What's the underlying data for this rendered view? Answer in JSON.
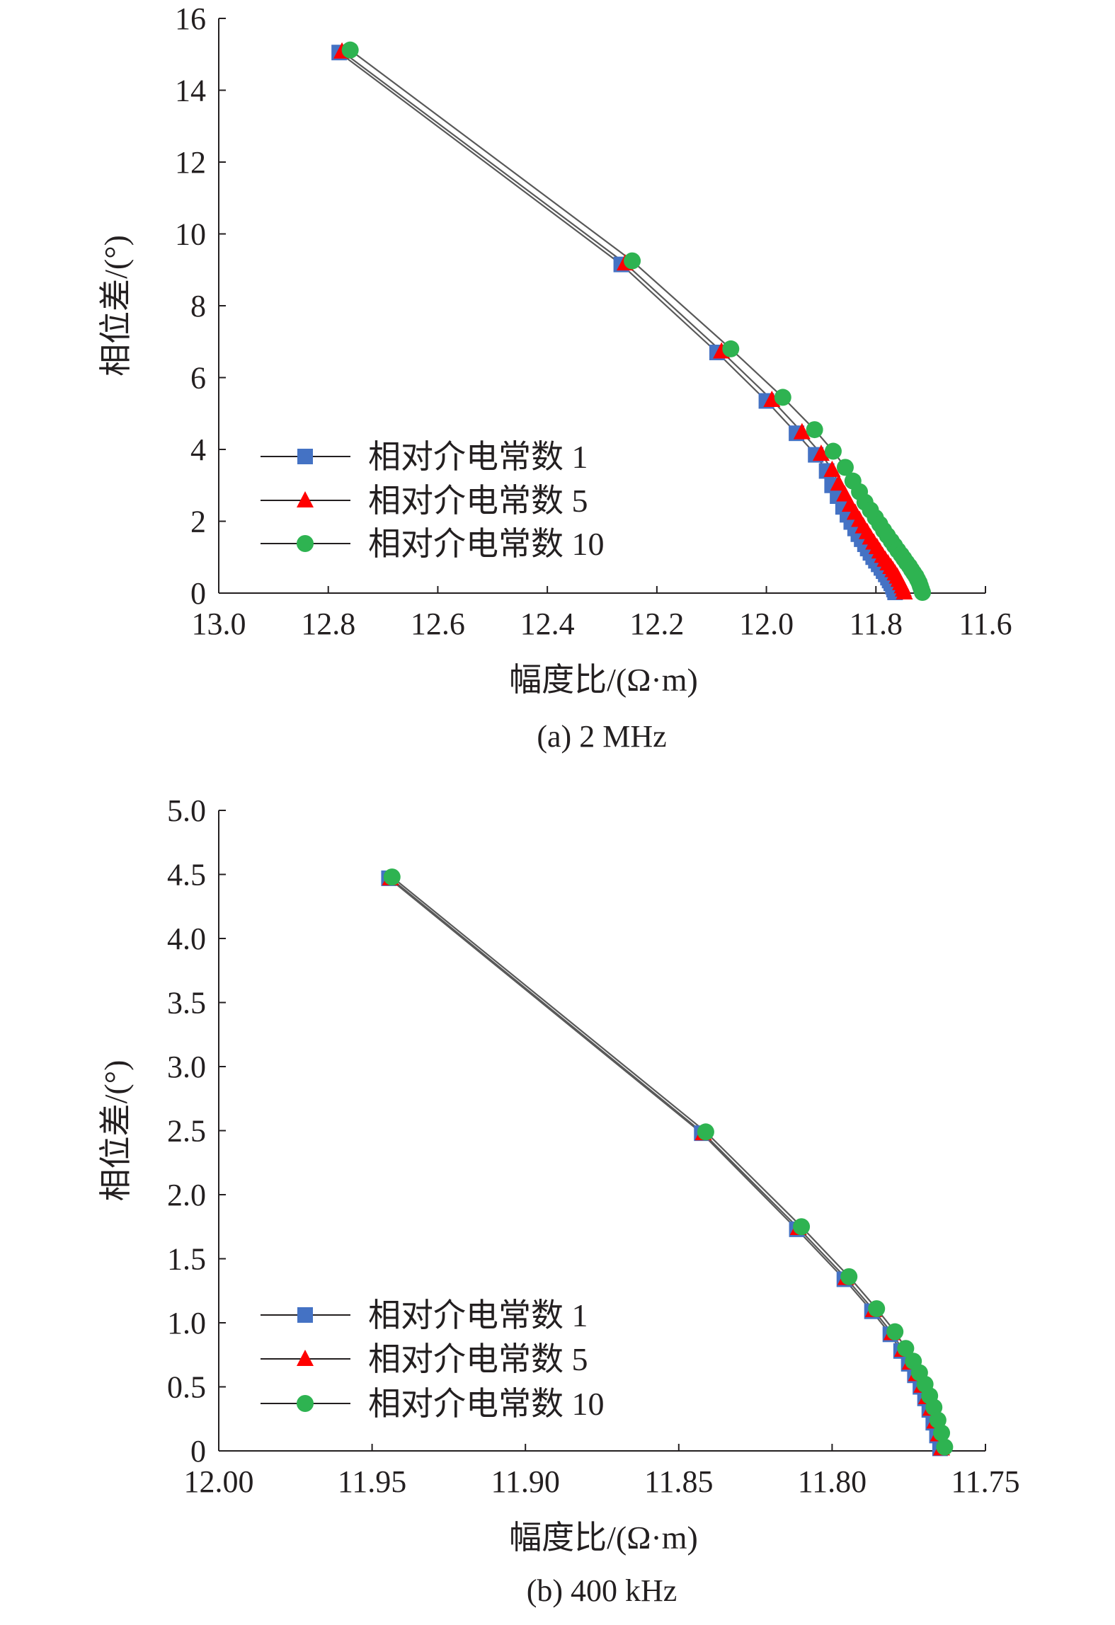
{
  "colors": {
    "series_1": "#4472c4",
    "series_5": "#ff0000",
    "series_10": "#2eb351",
    "axis": "#231f20",
    "connector": "#595959"
  },
  "chart_data": [
    {
      "id": "a",
      "type": "line",
      "caption": "(a) 2 MHz",
      "xlabel": "幅度比/(Ω·m)",
      "ylabel": "相位差/(°)",
      "xlim": [
        13.0,
        11.6
      ],
      "ylim": [
        0,
        16
      ],
      "x_reversed": true,
      "xticks": [
        "13.0",
        "12.8",
        "12.6",
        "12.4",
        "12.2",
        "12.0",
        "11.8",
        "11.6"
      ],
      "yticks": [
        "0",
        "2",
        "4",
        "6",
        "8",
        "10",
        "12",
        "14",
        "16"
      ],
      "legend_position": "lower-left",
      "series": [
        {
          "name": "相对介电常数 1",
          "marker": "square",
          "color_key": "series_1",
          "x": [
            12.78,
            12.265,
            12.09,
            12.0,
            11.945,
            11.91,
            11.89,
            11.88,
            11.87,
            11.86,
            11.852,
            11.845,
            11.838,
            11.832,
            11.826,
            11.82,
            11.815,
            11.81,
            11.805,
            11.8,
            11.795,
            11.79,
            11.786,
            11.782,
            11.778,
            11.775,
            11.772,
            11.769,
            11.767,
            11.765
          ],
          "y": [
            15.05,
            9.15,
            6.7,
            5.35,
            4.45,
            3.85,
            3.4,
            3.0,
            2.7,
            2.4,
            2.18,
            1.98,
            1.8,
            1.64,
            1.5,
            1.36,
            1.24,
            1.12,
            1.0,
            0.9,
            0.8,
            0.7,
            0.61,
            0.52,
            0.43,
            0.35,
            0.27,
            0.18,
            0.1,
            0.02
          ]
        },
        {
          "name": "相对介电常数 5",
          "marker": "triangle",
          "color_key": "series_5",
          "x": [
            12.775,
            12.258,
            12.082,
            11.99,
            11.935,
            11.9,
            11.88,
            11.868,
            11.857,
            11.847,
            11.838,
            11.83,
            11.823,
            11.816,
            11.81,
            11.804,
            11.798,
            11.793,
            11.788,
            11.783,
            11.778,
            11.773,
            11.769,
            11.765,
            11.761,
            11.758,
            11.755,
            11.752,
            11.75,
            11.748
          ],
          "y": [
            15.08,
            9.18,
            6.73,
            5.38,
            4.48,
            3.88,
            3.43,
            3.05,
            2.75,
            2.46,
            2.24,
            2.04,
            1.86,
            1.7,
            1.55,
            1.41,
            1.28,
            1.16,
            1.04,
            0.93,
            0.83,
            0.73,
            0.64,
            0.55,
            0.46,
            0.37,
            0.28,
            0.19,
            0.1,
            0.02
          ]
        },
        {
          "name": "相对介电常数 10",
          "marker": "circle",
          "color_key": "series_10",
          "x": [
            12.76,
            12.245,
            12.065,
            11.97,
            11.912,
            11.878,
            11.856,
            11.842,
            11.83,
            11.82,
            11.81,
            11.801,
            11.793,
            11.786,
            11.779,
            11.772,
            11.766,
            11.76,
            11.754,
            11.749,
            11.744,
            11.739,
            11.735,
            11.731,
            11.727,
            11.724,
            11.721,
            11.719,
            11.717,
            11.715
          ],
          "y": [
            15.12,
            9.25,
            6.8,
            5.45,
            4.55,
            3.95,
            3.5,
            3.12,
            2.82,
            2.53,
            2.31,
            2.1,
            1.92,
            1.75,
            1.6,
            1.45,
            1.32,
            1.19,
            1.07,
            0.96,
            0.85,
            0.75,
            0.65,
            0.56,
            0.47,
            0.38,
            0.29,
            0.2,
            0.11,
            0.02
          ]
        }
      ]
    },
    {
      "id": "b",
      "type": "line",
      "caption": "(b) 400 kHz",
      "xlabel": "幅度比/(Ω·m)",
      "ylabel": "相位差/(°)",
      "xlim": [
        12.0,
        11.75
      ],
      "ylim": [
        0,
        5.0
      ],
      "x_reversed": true,
      "xticks": [
        "12.00",
        "11.95",
        "11.90",
        "11.85",
        "11.80",
        "11.75"
      ],
      "yticks": [
        "0",
        "0.5",
        "1.0",
        "1.5",
        "2.0",
        "2.5",
        "3.0",
        "3.5",
        "4.0",
        "4.5",
        "5.0"
      ],
      "legend_position": "lower-left",
      "series": [
        {
          "name": "相对介电常数 1",
          "marker": "square",
          "color_key": "series_1",
          "x": [
            11.9445,
            11.8425,
            11.8115,
            11.796,
            11.787,
            11.781,
            11.7775,
            11.775,
            11.773,
            11.7712,
            11.7697,
            11.7683,
            11.767,
            11.7658,
            11.7648
          ],
          "y": [
            4.47,
            2.48,
            1.73,
            1.34,
            1.09,
            0.91,
            0.78,
            0.68,
            0.59,
            0.5,
            0.41,
            0.32,
            0.22,
            0.12,
            0.02
          ]
        },
        {
          "name": "相对介电常数 5",
          "marker": "triangle",
          "color_key": "series_5",
          "x": [
            11.944,
            11.842,
            11.811,
            11.7955,
            11.7865,
            11.7805,
            11.777,
            11.7745,
            11.7725,
            11.7707,
            11.7692,
            11.7678,
            11.7665,
            11.7653,
            11.7643
          ],
          "y": [
            4.47,
            2.48,
            1.74,
            1.35,
            1.1,
            0.92,
            0.79,
            0.69,
            0.6,
            0.51,
            0.42,
            0.33,
            0.23,
            0.13,
            0.02
          ]
        },
        {
          "name": "相对介电常数 10",
          "marker": "circle",
          "color_key": "series_10",
          "x": [
            11.9435,
            11.8412,
            11.81,
            11.7945,
            11.7855,
            11.7795,
            11.776,
            11.7735,
            11.7715,
            11.7697,
            11.7682,
            11.7668,
            11.7655,
            11.7643,
            11.7633
          ],
          "y": [
            4.48,
            2.49,
            1.75,
            1.36,
            1.11,
            0.93,
            0.8,
            0.7,
            0.61,
            0.52,
            0.43,
            0.34,
            0.24,
            0.14,
            0.03
          ]
        }
      ]
    }
  ]
}
